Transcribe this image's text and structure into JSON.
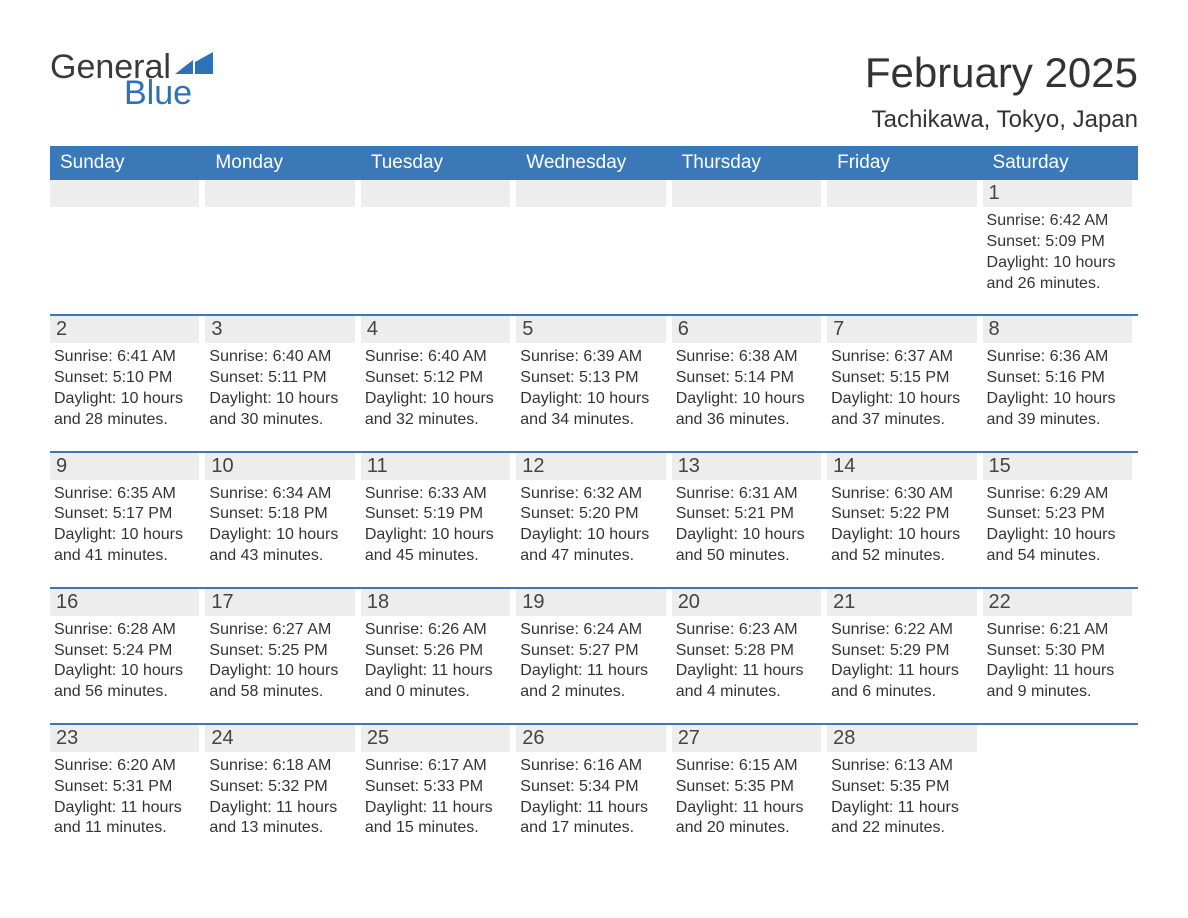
{
  "logo": {
    "word1": "General",
    "word2": "Blue",
    "shape_color": "#2f71b8"
  },
  "title": "February 2025",
  "subtitle": "Tachikawa, Tokyo, Japan",
  "colors": {
    "header_bg": "#3a78b8",
    "header_text": "#ffffff",
    "daynum_bg": "#ededed",
    "text": "#333333",
    "rule": "#3a78b8",
    "background": "#ffffff"
  },
  "typography": {
    "title_fontsize": 42,
    "subtitle_fontsize": 24,
    "weekday_fontsize": 19,
    "daynum_fontsize": 20,
    "body_fontsize": 16
  },
  "weekdays": [
    "Sunday",
    "Monday",
    "Tuesday",
    "Wednesday",
    "Thursday",
    "Friday",
    "Saturday"
  ],
  "weeks": [
    [
      null,
      null,
      null,
      null,
      null,
      null,
      {
        "n": "1",
        "sunrise": "6:42 AM",
        "sunset": "5:09 PM",
        "daylight": "10 hours and 26 minutes."
      }
    ],
    [
      {
        "n": "2",
        "sunrise": "6:41 AM",
        "sunset": "5:10 PM",
        "daylight": "10 hours and 28 minutes."
      },
      {
        "n": "3",
        "sunrise": "6:40 AM",
        "sunset": "5:11 PM",
        "daylight": "10 hours and 30 minutes."
      },
      {
        "n": "4",
        "sunrise": "6:40 AM",
        "sunset": "5:12 PM",
        "daylight": "10 hours and 32 minutes."
      },
      {
        "n": "5",
        "sunrise": "6:39 AM",
        "sunset": "5:13 PM",
        "daylight": "10 hours and 34 minutes."
      },
      {
        "n": "6",
        "sunrise": "6:38 AM",
        "sunset": "5:14 PM",
        "daylight": "10 hours and 36 minutes."
      },
      {
        "n": "7",
        "sunrise": "6:37 AM",
        "sunset": "5:15 PM",
        "daylight": "10 hours and 37 minutes."
      },
      {
        "n": "8",
        "sunrise": "6:36 AM",
        "sunset": "5:16 PM",
        "daylight": "10 hours and 39 minutes."
      }
    ],
    [
      {
        "n": "9",
        "sunrise": "6:35 AM",
        "sunset": "5:17 PM",
        "daylight": "10 hours and 41 minutes."
      },
      {
        "n": "10",
        "sunrise": "6:34 AM",
        "sunset": "5:18 PM",
        "daylight": "10 hours and 43 minutes."
      },
      {
        "n": "11",
        "sunrise": "6:33 AM",
        "sunset": "5:19 PM",
        "daylight": "10 hours and 45 minutes."
      },
      {
        "n": "12",
        "sunrise": "6:32 AM",
        "sunset": "5:20 PM",
        "daylight": "10 hours and 47 minutes."
      },
      {
        "n": "13",
        "sunrise": "6:31 AM",
        "sunset": "5:21 PM",
        "daylight": "10 hours and 50 minutes."
      },
      {
        "n": "14",
        "sunrise": "6:30 AM",
        "sunset": "5:22 PM",
        "daylight": "10 hours and 52 minutes."
      },
      {
        "n": "15",
        "sunrise": "6:29 AM",
        "sunset": "5:23 PM",
        "daylight": "10 hours and 54 minutes."
      }
    ],
    [
      {
        "n": "16",
        "sunrise": "6:28 AM",
        "sunset": "5:24 PM",
        "daylight": "10 hours and 56 minutes."
      },
      {
        "n": "17",
        "sunrise": "6:27 AM",
        "sunset": "5:25 PM",
        "daylight": "10 hours and 58 minutes."
      },
      {
        "n": "18",
        "sunrise": "6:26 AM",
        "sunset": "5:26 PM",
        "daylight": "11 hours and 0 minutes."
      },
      {
        "n": "19",
        "sunrise": "6:24 AM",
        "sunset": "5:27 PM",
        "daylight": "11 hours and 2 minutes."
      },
      {
        "n": "20",
        "sunrise": "6:23 AM",
        "sunset": "5:28 PM",
        "daylight": "11 hours and 4 minutes."
      },
      {
        "n": "21",
        "sunrise": "6:22 AM",
        "sunset": "5:29 PM",
        "daylight": "11 hours and 6 minutes."
      },
      {
        "n": "22",
        "sunrise": "6:21 AM",
        "sunset": "5:30 PM",
        "daylight": "11 hours and 9 minutes."
      }
    ],
    [
      {
        "n": "23",
        "sunrise": "6:20 AM",
        "sunset": "5:31 PM",
        "daylight": "11 hours and 11 minutes."
      },
      {
        "n": "24",
        "sunrise": "6:18 AM",
        "sunset": "5:32 PM",
        "daylight": "11 hours and 13 minutes."
      },
      {
        "n": "25",
        "sunrise": "6:17 AM",
        "sunset": "5:33 PM",
        "daylight": "11 hours and 15 minutes."
      },
      {
        "n": "26",
        "sunrise": "6:16 AM",
        "sunset": "5:34 PM",
        "daylight": "11 hours and 17 minutes."
      },
      {
        "n": "27",
        "sunrise": "6:15 AM",
        "sunset": "5:35 PM",
        "daylight": "11 hours and 20 minutes."
      },
      {
        "n": "28",
        "sunrise": "6:13 AM",
        "sunset": "5:35 PM",
        "daylight": "11 hours and 22 minutes."
      },
      null
    ]
  ],
  "labels": {
    "sunrise_prefix": "Sunrise: ",
    "sunset_prefix": "Sunset: ",
    "daylight_prefix": "Daylight: "
  }
}
